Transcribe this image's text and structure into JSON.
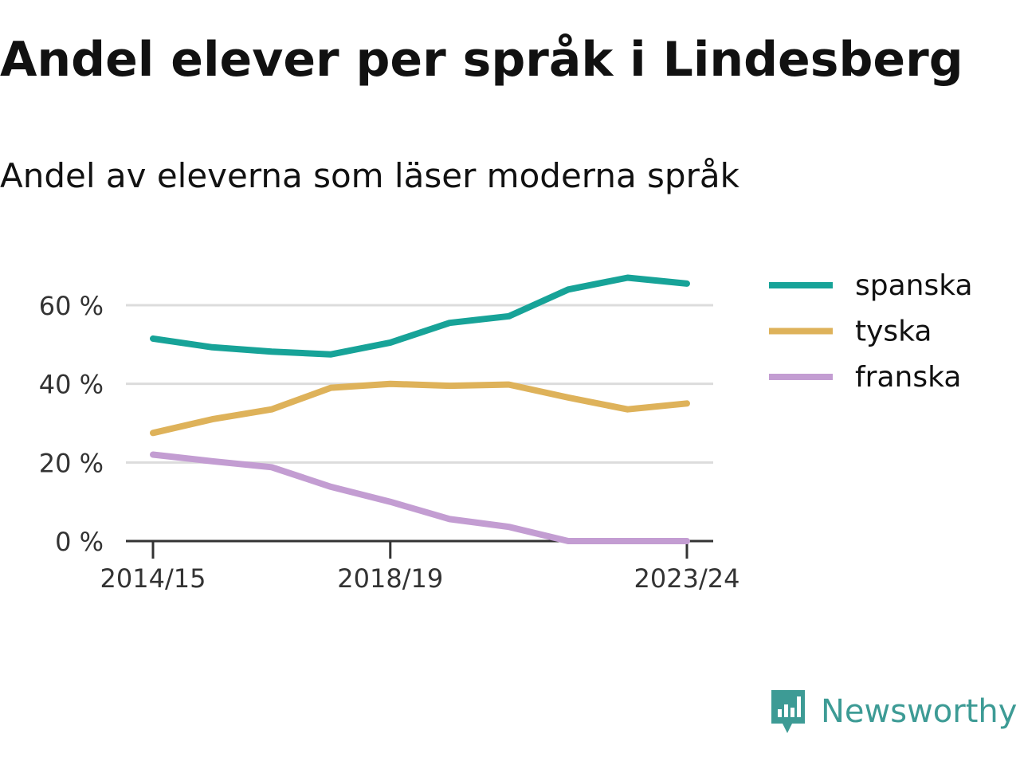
{
  "title": "Andel elever per språk i Lindesberg",
  "subtitle": "Andel av eleverna som läser moderna språk",
  "brand": {
    "name": "Newsworthy",
    "color": "#3d9b95",
    "icon": "newsworthy-logo-icon"
  },
  "chart_data": {
    "type": "line",
    "title": "Andel elever per språk i Lindesberg",
    "subtitle": "Andel av eleverna som läser moderna språk",
    "xlabel": "",
    "ylabel": "",
    "x": [
      "2014/15",
      "2015/16",
      "2016/17",
      "2017/18",
      "2018/19",
      "2019/20",
      "2020/21",
      "2021/22",
      "2022/23",
      "2023/24"
    ],
    "x_tick_labels": [
      "2014/15",
      "2018/19",
      "2023/24"
    ],
    "y_ticks": [
      0,
      20,
      40,
      60
    ],
    "y_tick_labels": [
      "0 %",
      "20 %",
      "40 %",
      "60 %"
    ],
    "ylim": [
      0,
      62
    ],
    "grid": true,
    "legend_position": "right",
    "series": [
      {
        "name": "spanska",
        "color": "#17a398",
        "values": [
          51.5,
          49.3,
          48.2,
          47.5,
          50.5,
          55.5,
          57.2,
          64,
          67,
          65.5
        ]
      },
      {
        "name": "tyska",
        "color": "#deb25a",
        "values": [
          27.5,
          31,
          33.5,
          39,
          40,
          39.5,
          39.8,
          36.5,
          33.5,
          35
        ]
      },
      {
        "name": "franska",
        "color": "#c39dd2",
        "values": [
          22,
          20.3,
          18.8,
          13.8,
          10,
          5.6,
          3.6,
          0,
          0,
          0
        ]
      }
    ]
  }
}
